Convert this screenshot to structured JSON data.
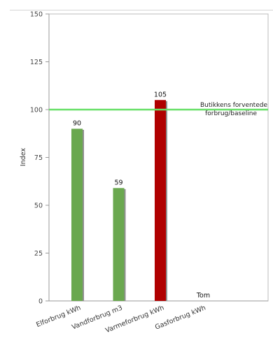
{
  "chart_data": {
    "type": "bar",
    "title": "",
    "xlabel": "",
    "ylabel": "Index",
    "ylim": [
      0,
      150
    ],
    "yticks": [
      0,
      25,
      50,
      75,
      100,
      125,
      150
    ],
    "categories": [
      "Elforbrug kWh",
      "Vandforbrug m3",
      "Varmeforbrug kWh",
      "Gasforbrug kWh"
    ],
    "values": [
      90,
      59,
      105,
      null
    ],
    "value_labels": [
      "90",
      "59",
      "105",
      "Tom"
    ],
    "bar_colors": [
      "#6aa84f",
      "#6aa84f",
      "#b00000",
      null
    ],
    "baseline": {
      "value": 100,
      "color": "#66e066",
      "label_lines": [
        "Butikkens forventede",
        "forbrug/baseline"
      ]
    },
    "grid": false,
    "legend": "none"
  },
  "colors": {
    "axis": "#bbbbbb",
    "bar_shadow": "#8f8f8f"
  }
}
